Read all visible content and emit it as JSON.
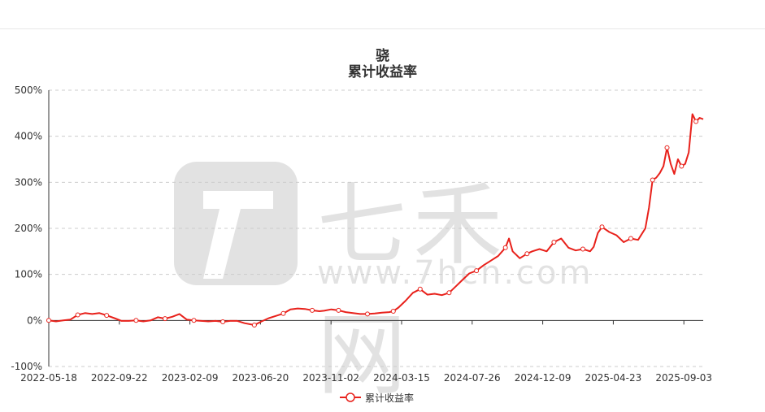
{
  "page": {
    "title": "骁",
    "subtitle": "累计收益率"
  },
  "watermark": {
    "text": "七禾网",
    "url": "www.7hcn.com"
  },
  "colors": {
    "series": "#e8211b",
    "grid": "#cccccc",
    "axis": "#333333",
    "text": "#333333"
  },
  "chart_data": {
    "type": "line",
    "title": "骁",
    "subtitle": "累计收益率",
    "ylim": [
      -100,
      500
    ],
    "yticks": [
      -100,
      0,
      100,
      200,
      300,
      400,
      500
    ],
    "ytick_labels": [
      "-100%",
      "0%",
      "100%",
      "200%",
      "300%",
      "400%",
      "500%"
    ],
    "x_range": [
      "2022-05-18",
      "2025-11-05"
    ],
    "xtick_labels": [
      "2022-05-18",
      "2022-09-22",
      "2023-02-09",
      "2023-06-20",
      "2023-11-02",
      "2024-03-15",
      "2024-07-26",
      "2024-12-09",
      "2025-04-23",
      "2025-09-03"
    ],
    "grid": true,
    "legend": "bottom-center",
    "series": [
      {
        "name": "累计收益率",
        "points": [
          [
            "2022-05-18",
            0
          ],
          [
            "2022-06-01",
            -2
          ],
          [
            "2022-06-15",
            0
          ],
          [
            "2022-06-29",
            2
          ],
          [
            "2022-07-13",
            12
          ],
          [
            "2022-07-27",
            16
          ],
          [
            "2022-08-10",
            14
          ],
          [
            "2022-08-24",
            16
          ],
          [
            "2022-09-07",
            11
          ],
          [
            "2022-09-22",
            5
          ],
          [
            "2022-10-06",
            -1
          ],
          [
            "2022-10-20",
            -1
          ],
          [
            "2022-11-03",
            0
          ],
          [
            "2022-11-17",
            -2
          ],
          [
            "2022-12-01",
            0
          ],
          [
            "2022-12-15",
            7
          ],
          [
            "2022-12-29",
            4
          ],
          [
            "2023-01-12",
            8
          ],
          [
            "2023-01-26",
            14
          ],
          [
            "2023-02-09",
            2
          ],
          [
            "2023-02-23",
            0
          ],
          [
            "2023-03-09",
            -1
          ],
          [
            "2023-03-23",
            -2
          ],
          [
            "2023-04-06",
            -1
          ],
          [
            "2023-04-20",
            -3
          ],
          [
            "2023-05-04",
            -1
          ],
          [
            "2023-05-18",
            -1
          ],
          [
            "2023-06-01",
            -6
          ],
          [
            "2023-06-20",
            -10
          ],
          [
            "2023-07-04",
            -2
          ],
          [
            "2023-07-18",
            5
          ],
          [
            "2023-08-01",
            10
          ],
          [
            "2023-08-15",
            15
          ],
          [
            "2023-08-29",
            24
          ],
          [
            "2023-09-12",
            26
          ],
          [
            "2023-09-26",
            25
          ],
          [
            "2023-10-10",
            22
          ],
          [
            "2023-10-24",
            20
          ],
          [
            "2023-11-02",
            21
          ],
          [
            "2023-11-16",
            24
          ],
          [
            "2023-11-30",
            22
          ],
          [
            "2023-12-14",
            18
          ],
          [
            "2023-12-28",
            16
          ],
          [
            "2024-01-11",
            14
          ],
          [
            "2024-01-25",
            14
          ],
          [
            "2024-02-08",
            15
          ],
          [
            "2024-02-22",
            17
          ],
          [
            "2024-03-07",
            18
          ],
          [
            "2024-03-15",
            20
          ],
          [
            "2024-03-25",
            28
          ],
          [
            "2024-04-08",
            43
          ],
          [
            "2024-04-22",
            60
          ],
          [
            "2024-05-06",
            68
          ],
          [
            "2024-05-20",
            56
          ],
          [
            "2024-06-03",
            58
          ],
          [
            "2024-06-17",
            55
          ],
          [
            "2024-07-01",
            60
          ],
          [
            "2024-07-15",
            75
          ],
          [
            "2024-07-26",
            87
          ],
          [
            "2024-08-09",
            102
          ],
          [
            "2024-08-23",
            108
          ],
          [
            "2024-09-06",
            120
          ],
          [
            "2024-09-20",
            130
          ],
          [
            "2024-10-04",
            140
          ],
          [
            "2024-10-18",
            158
          ],
          [
            "2024-10-25",
            178
          ],
          [
            "2024-11-01",
            150
          ],
          [
            "2024-11-15",
            135
          ],
          [
            "2024-11-29",
            145
          ],
          [
            "2024-12-09",
            150
          ],
          [
            "2024-12-23",
            155
          ],
          [
            "2025-01-06",
            150
          ],
          [
            "2025-01-20",
            170
          ],
          [
            "2025-02-03",
            178
          ],
          [
            "2025-02-17",
            158
          ],
          [
            "2025-03-03",
            152
          ],
          [
            "2025-03-17",
            155
          ],
          [
            "2025-03-31",
            150
          ],
          [
            "2025-04-07",
            160
          ],
          [
            "2025-04-15",
            190
          ],
          [
            "2025-04-23",
            203
          ],
          [
            "2025-05-07",
            192
          ],
          [
            "2025-05-21",
            185
          ],
          [
            "2025-06-04",
            170
          ],
          [
            "2025-06-18",
            178
          ],
          [
            "2025-07-02",
            175
          ],
          [
            "2025-07-16",
            200
          ],
          [
            "2025-07-23",
            245
          ],
          [
            "2025-07-30",
            305
          ],
          [
            "2025-08-06",
            310
          ],
          [
            "2025-08-13",
            320
          ],
          [
            "2025-08-20",
            335
          ],
          [
            "2025-08-27",
            375
          ],
          [
            "2025-09-03",
            340
          ],
          [
            "2025-09-10",
            318
          ],
          [
            "2025-09-17",
            350
          ],
          [
            "2025-09-24",
            335
          ],
          [
            "2025-10-01",
            340
          ],
          [
            "2025-10-08",
            365
          ],
          [
            "2025-10-15",
            448
          ],
          [
            "2025-10-22",
            432
          ],
          [
            "2025-10-29",
            440
          ],
          [
            "2025-11-05",
            437
          ]
        ]
      }
    ]
  },
  "legend": {
    "label": "累计收益率"
  }
}
